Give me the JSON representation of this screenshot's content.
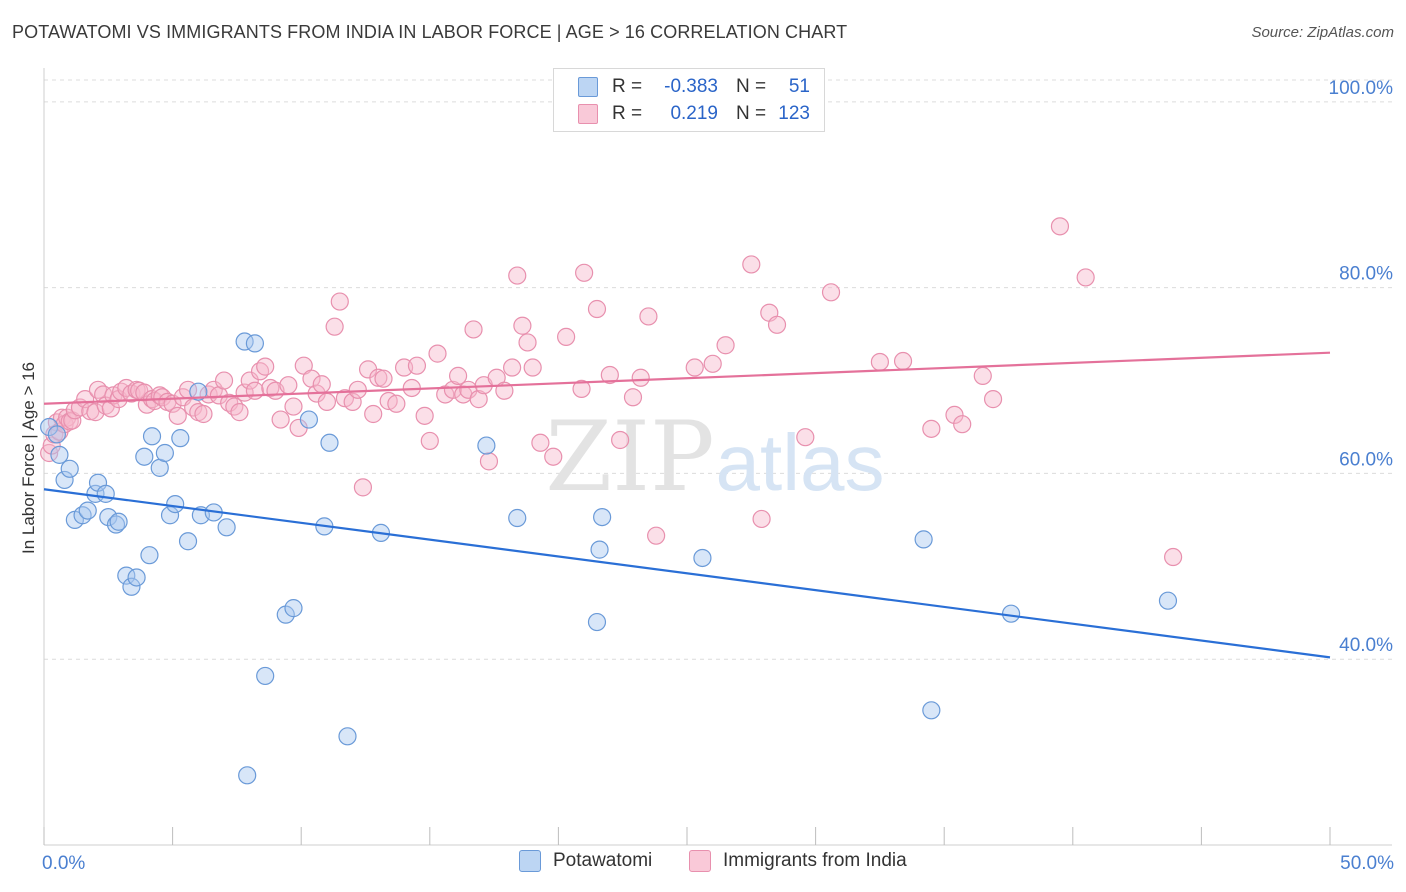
{
  "header": {
    "title": "POTAWATOMI VS IMMIGRANTS FROM INDIA IN LABOR FORCE | AGE > 16 CORRELATION CHART",
    "source": "Source: ZipAtlas.com"
  },
  "legend": {
    "rows": [
      {
        "r_label": "R =",
        "r_value": "-0.383",
        "n_label": "N =",
        "n_value": "51"
      },
      {
        "r_label": "R =",
        "r_value": "0.219",
        "n_label": "N =",
        "n_value": "123"
      }
    ]
  },
  "watermark": {
    "zip": "ZIP",
    "atlas": "atlas"
  },
  "bottom_legend": [
    "Potawatomi",
    "Immigrants from India"
  ],
  "colors": {
    "blue_fill": "#a8c8f0",
    "blue_stroke": "#6a9ad8",
    "blue_line": "#2a6fd6",
    "pink_fill": "#f6b8cc",
    "pink_stroke": "#e890ae",
    "pink_line": "#e4719a",
    "tick_label": "#4a7fd0",
    "grid": "#dcdcdc"
  },
  "chart_data": {
    "type": "scatter",
    "title": "POTAWATOMI VS IMMIGRANTS FROM INDIA IN LABOR FORCE | AGE > 16 CORRELATION CHART",
    "xlabel": "",
    "ylabel": "In Labor Force | Age > 16",
    "xlim": [
      0,
      50
    ],
    "ylim": [
      20,
      103
    ],
    "x_tick_labels": [
      {
        "value": 0,
        "label": "0.0%"
      },
      {
        "value": 50,
        "label": "50.0%"
      }
    ],
    "y_tick_labels": [
      {
        "value": 100,
        "label": "100.0%"
      },
      {
        "value": 80,
        "label": "80.0%"
      },
      {
        "value": 60,
        "label": "60.0%"
      },
      {
        "value": 40,
        "label": "40.0%"
      }
    ],
    "grid": true,
    "legend_position": "top-center",
    "series": [
      {
        "name": "Potawatomi",
        "r": -0.383,
        "n": 51,
        "trend": {
          "x": [
            0,
            50
          ],
          "y": [
            58.3,
            40.2
          ]
        },
        "points": [
          [
            0.2,
            65.0
          ],
          [
            0.5,
            64.2
          ],
          [
            0.6,
            62.0
          ],
          [
            0.8,
            59.3
          ],
          [
            1.0,
            60.5
          ],
          [
            1.2,
            55.0
          ],
          [
            1.5,
            55.5
          ],
          [
            1.7,
            56.0
          ],
          [
            2.0,
            57.8
          ],
          [
            2.1,
            59.0
          ],
          [
            2.4,
            57.8
          ],
          [
            2.5,
            55.3
          ],
          [
            2.8,
            54.5
          ],
          [
            2.9,
            54.8
          ],
          [
            3.2,
            49.0
          ],
          [
            3.4,
            47.8
          ],
          [
            3.6,
            48.8
          ],
          [
            3.9,
            61.8
          ],
          [
            4.1,
            51.2
          ],
          [
            4.2,
            64.0
          ],
          [
            4.5,
            60.6
          ],
          [
            4.7,
            62.2
          ],
          [
            4.9,
            55.5
          ],
          [
            5.1,
            56.7
          ],
          [
            5.3,
            63.8
          ],
          [
            5.6,
            52.7
          ],
          [
            6.0,
            68.8
          ],
          [
            6.1,
            55.5
          ],
          [
            6.6,
            55.8
          ],
          [
            7.1,
            54.2
          ],
          [
            7.8,
            74.2
          ],
          [
            8.2,
            74.0
          ],
          [
            8.6,
            38.2
          ],
          [
            7.9,
            27.5
          ],
          [
            9.4,
            44.8
          ],
          [
            9.7,
            45.5
          ],
          [
            10.3,
            65.8
          ],
          [
            10.9,
            54.3
          ],
          [
            11.1,
            63.3
          ],
          [
            11.8,
            31.7
          ],
          [
            13.1,
            53.6
          ],
          [
            17.2,
            63.0
          ],
          [
            18.4,
            55.2
          ],
          [
            21.6,
            51.8
          ],
          [
            21.7,
            55.3
          ],
          [
            21.5,
            44.0
          ],
          [
            25.6,
            50.9
          ],
          [
            34.2,
            52.9
          ],
          [
            34.5,
            34.5
          ],
          [
            37.6,
            44.9
          ],
          [
            43.7,
            46.3
          ]
        ]
      },
      {
        "name": "Immigrants from India",
        "r": 0.219,
        "n": 123,
        "trend": {
          "x": [
            0,
            50
          ],
          "y": [
            67.5,
            73.0
          ]
        },
        "points": [
          [
            0.2,
            62.2
          ],
          [
            0.3,
            63.0
          ],
          [
            0.4,
            64.2
          ],
          [
            0.5,
            65.5
          ],
          [
            0.6,
            64.5
          ],
          [
            0.7,
            66.0
          ],
          [
            0.8,
            65.3
          ],
          [
            0.9,
            66.0
          ],
          [
            1.0,
            65.6
          ],
          [
            1.1,
            65.7
          ],
          [
            1.2,
            66.8
          ],
          [
            1.4,
            67.1
          ],
          [
            1.6,
            68.0
          ],
          [
            1.8,
            66.7
          ],
          [
            2.0,
            66.6
          ],
          [
            2.1,
            69.0
          ],
          [
            2.3,
            68.5
          ],
          [
            2.4,
            67.3
          ],
          [
            2.6,
            67.0
          ],
          [
            2.7,
            68.4
          ],
          [
            2.9,
            68.0
          ],
          [
            3.0,
            68.8
          ],
          [
            3.2,
            69.2
          ],
          [
            3.4,
            68.6
          ],
          [
            3.6,
            69.0
          ],
          [
            3.7,
            68.9
          ],
          [
            3.9,
            68.7
          ],
          [
            4.0,
            67.4
          ],
          [
            4.2,
            68.0
          ],
          [
            4.3,
            67.8
          ],
          [
            4.5,
            68.4
          ],
          [
            4.6,
            68.2
          ],
          [
            4.8,
            67.7
          ],
          [
            5.0,
            67.5
          ],
          [
            5.2,
            66.2
          ],
          [
            5.4,
            68.2
          ],
          [
            5.6,
            69.0
          ],
          [
            5.8,
            67.1
          ],
          [
            6.0,
            66.6
          ],
          [
            6.2,
            66.4
          ],
          [
            6.4,
            68.5
          ],
          [
            6.6,
            69.0
          ],
          [
            6.8,
            68.4
          ],
          [
            7.0,
            70.0
          ],
          [
            7.2,
            67.6
          ],
          [
            7.4,
            67.2
          ],
          [
            7.6,
            66.6
          ],
          [
            7.8,
            68.7
          ],
          [
            8.0,
            70.0
          ],
          [
            8.2,
            68.9
          ],
          [
            8.4,
            71.0
          ],
          [
            8.6,
            71.5
          ],
          [
            8.8,
            69.2
          ],
          [
            9.0,
            68.9
          ],
          [
            9.2,
            65.8
          ],
          [
            9.5,
            69.5
          ],
          [
            9.7,
            67.2
          ],
          [
            9.9,
            64.9
          ],
          [
            10.1,
            71.6
          ],
          [
            10.4,
            70.2
          ],
          [
            10.6,
            68.6
          ],
          [
            10.8,
            69.6
          ],
          [
            11.0,
            67.7
          ],
          [
            11.3,
            75.8
          ],
          [
            11.5,
            78.5
          ],
          [
            11.7,
            68.1
          ],
          [
            12.0,
            67.7
          ],
          [
            12.2,
            69.0
          ],
          [
            12.4,
            58.5
          ],
          [
            12.6,
            71.2
          ],
          [
            12.8,
            66.4
          ],
          [
            13.0,
            70.3
          ],
          [
            13.2,
            70.2
          ],
          [
            13.4,
            67.8
          ],
          [
            13.7,
            67.5
          ],
          [
            14.0,
            71.4
          ],
          [
            14.3,
            69.2
          ],
          [
            14.5,
            71.6
          ],
          [
            14.8,
            66.2
          ],
          [
            15.0,
            63.5
          ],
          [
            15.3,
            72.9
          ],
          [
            15.6,
            68.5
          ],
          [
            15.9,
            69.0
          ],
          [
            16.1,
            70.5
          ],
          [
            16.3,
            68.5
          ],
          [
            16.5,
            69.0
          ],
          [
            16.7,
            75.5
          ],
          [
            16.9,
            68.0
          ],
          [
            17.1,
            69.5
          ],
          [
            17.3,
            61.3
          ],
          [
            17.6,
            70.3
          ],
          [
            17.9,
            68.9
          ],
          [
            18.2,
            71.4
          ],
          [
            18.4,
            81.3
          ],
          [
            18.6,
            75.9
          ],
          [
            18.8,
            74.1
          ],
          [
            19.0,
            71.4
          ],
          [
            19.3,
            63.3
          ],
          [
            19.8,
            61.8
          ],
          [
            20.3,
            74.7
          ],
          [
            20.9,
            69.1
          ],
          [
            21.0,
            81.6
          ],
          [
            21.5,
            77.7
          ],
          [
            22.0,
            70.6
          ],
          [
            22.4,
            63.6
          ],
          [
            22.9,
            68.2
          ],
          [
            23.2,
            70.3
          ],
          [
            23.5,
            76.9
          ],
          [
            23.8,
            53.3
          ],
          [
            25.3,
            71.4
          ],
          [
            26.0,
            71.8
          ],
          [
            26.5,
            73.8
          ],
          [
            27.5,
            82.5
          ],
          [
            27.9,
            55.1
          ],
          [
            28.2,
            77.3
          ],
          [
            28.5,
            76.0
          ],
          [
            29.6,
            63.9
          ],
          [
            30.6,
            79.5
          ],
          [
            32.5,
            72.0
          ],
          [
            33.4,
            72.1
          ],
          [
            34.5,
            64.8
          ],
          [
            35.4,
            66.3
          ],
          [
            35.7,
            65.3
          ],
          [
            36.5,
            70.5
          ],
          [
            36.9,
            68.0
          ],
          [
            39.5,
            86.6
          ],
          [
            40.5,
            81.1
          ],
          [
            43.9,
            51.0
          ]
        ]
      }
    ]
  }
}
